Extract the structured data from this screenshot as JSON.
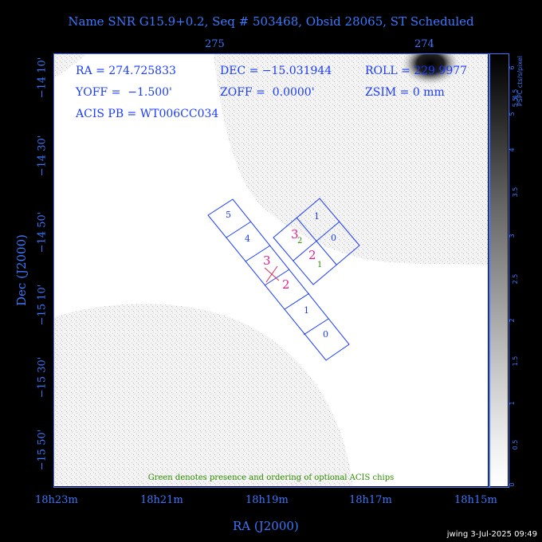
{
  "title": "Name SNR G15.9+0.2, Seq # 503468, Obsid 28065, ST Scheduled",
  "top_axis": {
    "ticks": [
      "275",
      "274"
    ]
  },
  "x_axis": {
    "label": "RA (J2000)",
    "ticks": [
      "18h23m",
      "18h21m",
      "18h19m",
      "18h17m",
      "18h15m"
    ]
  },
  "y_axis": {
    "label": "Dec (J2000)",
    "ticks": [
      "−14 10'",
      "−14 30'",
      "−14 50'",
      "−15 10'",
      "−15 30'",
      "−15 50'"
    ]
  },
  "colorbar": {
    "title": "PSPC cts/s/pixel",
    "ticks": [
      "6",
      "5.5",
      "5",
      "4.5",
      "4",
      "3.5",
      "3",
      "2.5",
      "2",
      "1.5",
      "1",
      "0.5",
      "0"
    ],
    "colors": {
      "top": "#000000",
      "bottom": "#ffffff"
    }
  },
  "info": {
    "ra": "RA = 274.725833",
    "dec": "DEC = −15.031944",
    "roll": "ROLL = 229.9977",
    "yoff": "YOFF =  −1.500'",
    "zoff": "ZOFF =  0.0000'",
    "zsim": "ZSIM = 0 mm",
    "acis": "ACIS PB = WT006CC034"
  },
  "chips": {
    "acis_s": [
      "5",
      "4",
      "3",
      "2",
      "1",
      "0"
    ],
    "acis_i": [
      "1",
      "0",
      "3",
      "2"
    ],
    "optional_green": [
      "2",
      "1"
    ]
  },
  "footnote": "Green denotes presence and ordering of optional ACIS chips",
  "stamp": "jwing   3-Jul-2025 09:49",
  "colors": {
    "axis": "#3a78ff",
    "chip_outline": "#1a3cff",
    "magenta": "#e0208a",
    "green": "#2e8b00"
  }
}
